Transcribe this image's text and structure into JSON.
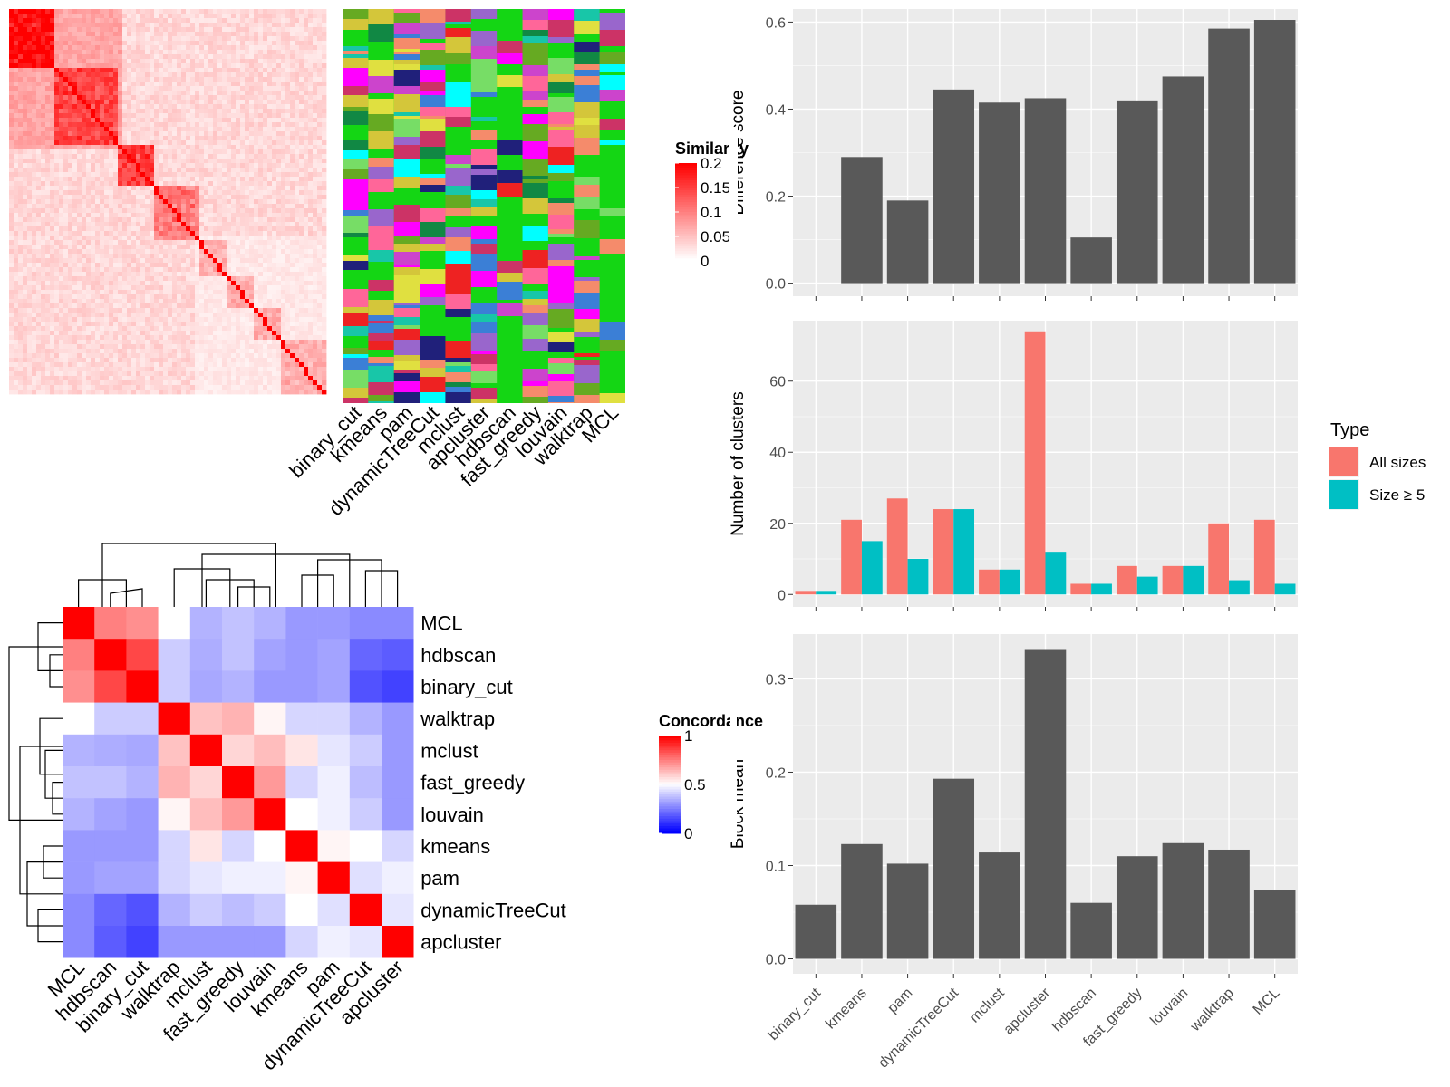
{
  "methods": [
    "binary_cut",
    "kmeans",
    "pam",
    "dynamicTreeCut",
    "mclust",
    "apcluster",
    "hdbscan",
    "fast_greedy",
    "louvain",
    "walktrap",
    "MCL"
  ],
  "chart_data": [
    {
      "type": "heatmap",
      "id": "similarity-heatmap",
      "legend_title": "Similarity",
      "legend_ticks": [
        "0.2",
        "0.15",
        "0.1",
        "0.05",
        "0"
      ],
      "legend_tick_values": [
        0.2,
        0.15,
        0.1,
        0.05,
        0
      ],
      "colors": {
        "low": "#ffffff",
        "high": "#ff0000"
      }
    },
    {
      "type": "heatmap",
      "id": "cluster-membership-strips",
      "columns": [
        "binary_cut",
        "kmeans",
        "pam",
        "dynamicTreeCut",
        "mclust",
        "apcluster",
        "hdbscan",
        "fast_greedy",
        "louvain",
        "walktrap",
        "MCL"
      ],
      "background": "#14d614"
    },
    {
      "type": "heatmap",
      "id": "concordance-heatmap",
      "legend_title": "Concordance",
      "legend_ticks": [
        "1",
        "0.5",
        "0"
      ],
      "legend_tick_values": [
        1,
        0.5,
        0
      ],
      "colors": {
        "low": "#0000ff",
        "mid": "#ffffff",
        "high": "#ff0000"
      },
      "row_order": [
        "MCL",
        "hdbscan",
        "binary_cut",
        "walktrap",
        "mclust",
        "fast_greedy",
        "louvain",
        "kmeans",
        "pam",
        "dynamicTreeCut",
        "apcluster"
      ],
      "col_order": [
        "MCL",
        "hdbscan",
        "binary_cut",
        "walktrap",
        "mclust",
        "fast_greedy",
        "louvain",
        "kmeans",
        "pam",
        "dynamicTreeCut",
        "apcluster"
      ],
      "matrix": [
        [
          1.0,
          0.75,
          0.72,
          0.5,
          0.35,
          0.38,
          0.35,
          0.3,
          0.3,
          0.27,
          0.27
        ],
        [
          0.75,
          1.0,
          0.86,
          0.4,
          0.34,
          0.38,
          0.32,
          0.3,
          0.32,
          0.2,
          0.18
        ],
        [
          0.72,
          0.86,
          1.0,
          0.4,
          0.33,
          0.35,
          0.3,
          0.3,
          0.32,
          0.16,
          0.13
        ],
        [
          0.5,
          0.4,
          0.4,
          1.0,
          0.62,
          0.65,
          0.52,
          0.42,
          0.42,
          0.35,
          0.3
        ],
        [
          0.35,
          0.34,
          0.33,
          0.62,
          1.0,
          0.58,
          0.63,
          0.55,
          0.45,
          0.4,
          0.3
        ],
        [
          0.38,
          0.38,
          0.35,
          0.65,
          0.58,
          1.0,
          0.7,
          0.42,
          0.47,
          0.37,
          0.3
        ],
        [
          0.35,
          0.32,
          0.3,
          0.52,
          0.63,
          0.7,
          1.0,
          0.5,
          0.47,
          0.4,
          0.3
        ],
        [
          0.3,
          0.3,
          0.3,
          0.42,
          0.55,
          0.42,
          0.5,
          1.0,
          0.52,
          0.5,
          0.42
        ],
        [
          0.3,
          0.32,
          0.32,
          0.42,
          0.45,
          0.47,
          0.47,
          0.52,
          1.0,
          0.44,
          0.47
        ],
        [
          0.27,
          0.2,
          0.16,
          0.35,
          0.4,
          0.37,
          0.4,
          0.5,
          0.44,
          1.0,
          0.45
        ],
        [
          0.27,
          0.18,
          0.13,
          0.3,
          0.3,
          0.3,
          0.3,
          0.42,
          0.47,
          0.45,
          1.0
        ]
      ],
      "row_labels": [
        "MCL",
        "hdbscan",
        "binary_cut",
        "walktrap",
        "mclust",
        "fast_greedy",
        "louvain",
        "kmeans",
        "pam",
        "dynamicTreeCut",
        "apcluster"
      ],
      "col_labels": [
        "MCL",
        "hdbscan",
        "binary_cut",
        "walktrap",
        "mclust",
        "fast_greedy",
        "louvain",
        "kmeans",
        "pam",
        "dynamicTreeCut",
        "apcluster"
      ]
    },
    {
      "type": "bar",
      "id": "difference-score",
      "categories": [
        "binary_cut",
        "kmeans",
        "pam",
        "dynamicTreeCut",
        "mclust",
        "apcluster",
        "hdbscan",
        "fast_greedy",
        "louvain",
        "walktrap",
        "MCL"
      ],
      "values": [
        0.0,
        0.29,
        0.19,
        0.445,
        0.415,
        0.425,
        0.105,
        0.42,
        0.475,
        0.585,
        0.605
      ],
      "ylabel": "Difference score",
      "ylim": [
        -0.03,
        0.63
      ],
      "yticks": [
        0.0,
        0.2,
        0.4,
        0.6
      ],
      "ytick_labels": [
        "0.0",
        "0.2",
        "0.4",
        "0.6"
      ],
      "color": "#595959"
    },
    {
      "type": "bar",
      "id": "number-of-clusters",
      "categories": [
        "binary_cut",
        "kmeans",
        "pam",
        "dynamicTreeCut",
        "mclust",
        "apcluster",
        "hdbscan",
        "fast_greedy",
        "louvain",
        "walktrap",
        "MCL"
      ],
      "series": [
        {
          "name": "All sizes",
          "values": [
            1,
            21,
            27,
            24,
            7,
            74,
            3,
            8,
            8,
            20,
            21
          ],
          "color": "#f8766d"
        },
        {
          "name": "Size ≥ 5",
          "values": [
            1,
            15,
            10,
            24,
            7,
            12,
            3,
            5,
            8,
            4,
            3
          ],
          "color": "#00bfc4"
        }
      ],
      "ylabel": "Number of clusters",
      "ylim": [
        -3.5,
        77
      ],
      "yticks": [
        0,
        20,
        40,
        60
      ],
      "ytick_labels": [
        "0",
        "20",
        "40",
        "60"
      ],
      "legend_title": "Type",
      "legend_position": "right"
    },
    {
      "type": "bar",
      "id": "block-mean",
      "categories": [
        "binary_cut",
        "kmeans",
        "pam",
        "dynamicTreeCut",
        "mclust",
        "apcluster",
        "hdbscan",
        "fast_greedy",
        "louvain",
        "walktrap",
        "MCL"
      ],
      "values": [
        0.058,
        0.123,
        0.102,
        0.193,
        0.114,
        0.331,
        0.06,
        0.11,
        0.124,
        0.117,
        0.074
      ],
      "ylabel": "Block mean",
      "ylim": [
        -0.016,
        0.348
      ],
      "yticks": [
        0.0,
        0.1,
        0.2,
        0.3
      ],
      "ytick_labels": [
        "0.0",
        "0.1",
        "0.2",
        "0.3"
      ],
      "color": "#595959"
    }
  ]
}
